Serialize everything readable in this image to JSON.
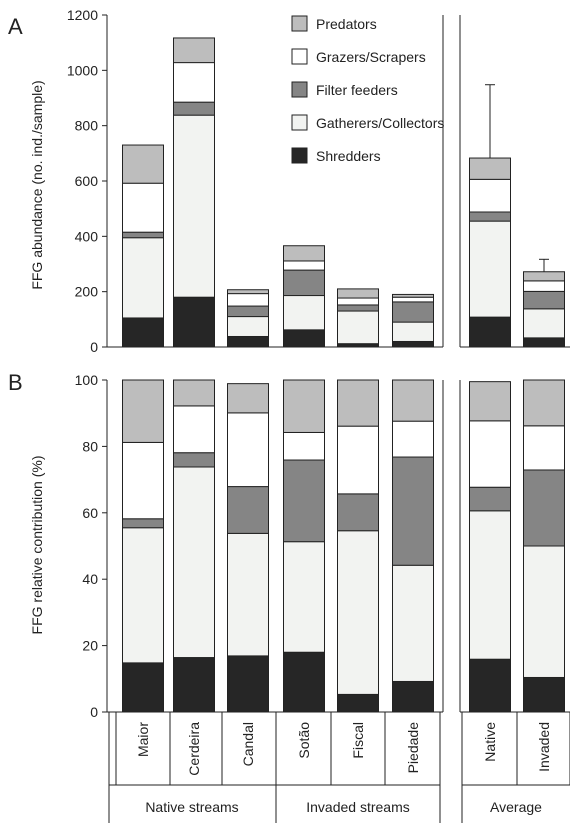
{
  "chart_data": [
    {
      "type": "bar",
      "stacked": true,
      "panel_label": "A",
      "ylabel": "FFG abundance (no. ind./sample)",
      "ylim": [
        0,
        1200
      ],
      "yticks": [
        0,
        200,
        400,
        600,
        800,
        1000,
        1200
      ],
      "categories": [
        "Maior",
        "Cerdeira",
        "Candal",
        "Sotão",
        "Fiscal",
        "Piedade",
        "Native",
        "Invaded"
      ],
      "legend_position": "top-right",
      "series": [
        {
          "name": "Shredders",
          "values": [
            105,
            180,
            38,
            62,
            12,
            20,
            108,
            33
          ]
        },
        {
          "name": "Gatherers/Collectors",
          "values": [
            290,
            658,
            72,
            124,
            118,
            70,
            347,
            105
          ]
        },
        {
          "name": "Filter feeders",
          "values": [
            20,
            47,
            38,
            92,
            22,
            73,
            33,
            63
          ]
        },
        {
          "name": "Grazers/Scrapers",
          "values": [
            177,
            143,
            45,
            33,
            25,
            17,
            118,
            38
          ]
        },
        {
          "name": "Predators",
          "values": [
            138,
            89,
            14,
            55,
            33,
            10,
            77,
            33
          ]
        }
      ],
      "error_bars": {
        "Native": 265,
        "Invaded": 45
      }
    },
    {
      "type": "bar",
      "stacked": true,
      "panel_label": "B",
      "ylabel": "FFG relative contribution (%)",
      "ylim": [
        0,
        100
      ],
      "yticks": [
        0,
        20,
        40,
        60,
        80,
        100
      ],
      "categories": [
        "Maior",
        "Cerdeira",
        "Candal",
        "Sotão",
        "Fiscal",
        "Piedade",
        "Native",
        "Invaded"
      ],
      "series": [
        {
          "name": "Shredders",
          "values": [
            14.8,
            16.4,
            16.9,
            18.0,
            5.3,
            9.2,
            15.9,
            10.4
          ]
        },
        {
          "name": "Gatherers/Collectors",
          "values": [
            40.7,
            57.4,
            36.9,
            33.3,
            49.3,
            35.0,
            44.7,
            39.6
          ]
        },
        {
          "name": "Filter feeders",
          "values": [
            2.7,
            4.3,
            14.1,
            24.6,
            11.1,
            32.6,
            7.1,
            22.9
          ]
        },
        {
          "name": "Grazers/Scrapers",
          "values": [
            23.0,
            14.1,
            22.2,
            8.3,
            20.4,
            10.8,
            20.0,
            13.3
          ]
        },
        {
          "name": "Predators",
          "values": [
            18.8,
            7.8,
            8.8,
            15.8,
            13.9,
            12.4,
            11.8,
            13.8
          ]
        }
      ]
    }
  ],
  "groups": [
    {
      "label": "Native streams"
    },
    {
      "label": "Invaded streams"
    },
    {
      "label": "Average"
    }
  ],
  "colors": {
    "Shredders": "#262626",
    "Gatherers/Collectors": "#f2f3f1",
    "Filter feeders": "#858585",
    "Grazers/Scrapers": "#ffffff",
    "Predators": "#bdbdbd"
  }
}
